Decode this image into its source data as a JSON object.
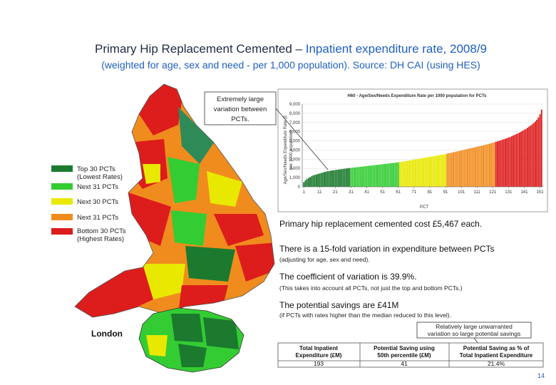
{
  "title": {
    "prefix": "Primary Hip Replacement Cemented –",
    "highlight": "Inpatient expenditure rate, 2008/9"
  },
  "subtitle": "(weighted for age, sex and need - per 1,000 population). Source: DH CAI (using HES)",
  "callout_top": [
    "Extremely large",
    "variation between",
    "PCTs."
  ],
  "legend": [
    "Top 30 PCTs",
    "(Lowest Rates)",
    "Next 31 PCTs",
    "Next 30 PCTs",
    "Next 31 PCTs",
    "Bottom 30 PCTs",
    "(Highest Rates)"
  ],
  "london_label": "London",
  "statements": [
    {
      "text": "Primary hip replacement cemented cost £5,467 each."
    },
    {
      "text": "There is a 15-fold variation in expenditure between PCTs",
      "note": "(adjusting for age, sex and need)."
    },
    {
      "text": "The coefficient of variation is 39.9%.",
      "note": "(This takes into account all PCTs, not just the top and bottom PCTs.)"
    },
    {
      "text": "The potential savings are £41M",
      "note": "(if PCTs with rates higher than the median reduced to this level)."
    }
  ],
  "callout_bottom": [
    "Relatively large unwarranted",
    "variation so large potential savings"
  ],
  "table": {
    "headers": [
      [
        "Total Inpatient",
        "Expenditure (£M)"
      ],
      [
        "Potential Saving using",
        "50th percentile (£M)"
      ],
      [
        "Potential Saving as % of",
        "Total Inpatient Expenditure"
      ]
    ],
    "rows": [
      [
        193,
        41,
        "21.4%"
      ]
    ]
  },
  "page_number": "14",
  "chart_data": {
    "type": "bar",
    "title": "H60 - Age/Sex/Needs Expenditure Rate per 1000 population for PCTs",
    "x_label": "PCT",
    "y_label": [
      "Age/Sex/Needs Expenditure Rate (£",
      "per 1000 population)"
    ],
    "xlim": [
      0,
      153
    ],
    "xticks": [
      1,
      11,
      21,
      31,
      41,
      51,
      61,
      71,
      81,
      91,
      101,
      111,
      121,
      131,
      141,
      151
    ],
    "ylim": [
      0,
      9000
    ],
    "yticks": [
      0,
      {
        "value": 1000,
        "label": "1,000"
      },
      {
        "value": 2000,
        "label": "2,000"
      },
      {
        "value": 3000,
        "label": "3,000"
      },
      {
        "value": 4000,
        "label": "4,000"
      },
      {
        "value": 5000,
        "label": "5,000"
      },
      {
        "value": 6000,
        "label": "6,000"
      },
      {
        "value": 7000,
        "label": "7,000"
      },
      {
        "value": 8000,
        "label": "8,000"
      },
      {
        "value": 9000,
        "label": "9,000"
      }
    ],
    "series": [
      {
        "color": "#1b7a2e",
        "values": [
          500,
          700,
          850,
          950,
          1050,
          1150,
          1250,
          1300,
          1350,
          1400,
          1450,
          1500,
          1550,
          1600,
          1650,
          1700,
          1720,
          1750,
          1780,
          1800,
          1830,
          1860,
          1880,
          1900,
          1920,
          1950,
          1970,
          2000,
          2020,
          2050
        ]
      },
      {
        "color": "#33cc33",
        "values": [
          2060,
          2080,
          2100,
          2120,
          2140,
          2160,
          2180,
          2200,
          2220,
          2240,
          2260,
          2280,
          2300,
          2320,
          2340,
          2360,
          2380,
          2400,
          2420,
          2440,
          2460,
          2480,
          2500,
          2520,
          2540,
          2560,
          2580,
          2600,
          2620,
          2640,
          2660
        ]
      },
      {
        "color": "#e8e800",
        "values": [
          2690,
          2720,
          2750,
          2780,
          2810,
          2840,
          2870,
          2900,
          2930,
          2960,
          2990,
          3020,
          3050,
          3080,
          3110,
          3140,
          3170,
          3200,
          3230,
          3260,
          3290,
          3320,
          3350,
          3380,
          3410,
          3440,
          3470,
          3500,
          3530,
          3560
        ]
      },
      {
        "color": "#f08c1e",
        "values": [
          3600,
          3640,
          3680,
          3720,
          3760,
          3800,
          3840,
          3880,
          3920,
          3960,
          4000,
          4040,
          4080,
          4120,
          4160,
          4200,
          4240,
          4280,
          4320,
          4360,
          4400,
          4440,
          4480,
          4520,
          4560,
          4600,
          4650,
          4700,
          4750,
          4800,
          4850
        ]
      },
      {
        "color": "#dd1c1c",
        "values": [
          4900,
          4950,
          5000,
          5060,
          5120,
          5180,
          5240,
          5300,
          5360,
          5420,
          5500,
          5580,
          5660,
          5740,
          5820,
          5900,
          6000,
          6100,
          6200,
          6300,
          6420,
          6540,
          6660,
          6800,
          6950,
          7100,
          7300,
          7550,
          7900,
          8400
        ]
      }
    ]
  }
}
